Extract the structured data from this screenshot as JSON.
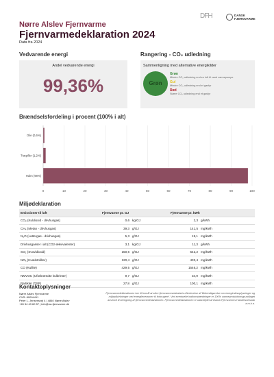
{
  "header": {
    "title": "Nørre Alslev Fjernvarme",
    "subtitle": "Fjernvarmedeklaration 2024",
    "note": "Data fra 2024",
    "logo_dfh": "DFH",
    "logo_df": "DANSK FJERNVARME"
  },
  "renewable": {
    "heading": "Vedvarende energi",
    "label": "Andel vedvarende energi",
    "value": "99,36%"
  },
  "rating": {
    "heading": "Rangering - CO₂ udledning",
    "subheading": "Sammenligning med alternative energikilder",
    "badge": "Grøn",
    "legend": [
      {
        "name": "Grøn",
        "text": "Mindre CO₂ udledning end en luft til vand varmepumpe"
      },
      {
        "name": "Gul",
        "text": "Mindre CO₂ udledning end et gasfyr"
      },
      {
        "name": "Rød",
        "text": "Større CO₂ udledning end et gasfyr"
      }
    ]
  },
  "chart_data": {
    "type": "bar",
    "orientation": "horizontal",
    "title": "Brændselsfordeling i procent (100% i alt)",
    "categories": [
      "Olie (0,6%)",
      "Træpiller (1,2%)",
      "Halm (98%)"
    ],
    "values": [
      0.6,
      1.2,
      98
    ],
    "color": "#8c4d60",
    "xlim": [
      0,
      100
    ],
    "xticks": [
      0,
      10,
      20,
      30,
      40,
      50,
      60,
      70,
      80,
      90,
      100
    ],
    "grid": true
  },
  "table": {
    "heading": "Miljødeklaration",
    "headers": [
      "Emissioner til luft",
      "Fjernvarme pr. GJ",
      "Fjernvarme pr. kWh"
    ],
    "rows": [
      [
        "CO₂ (Kuldioxid - drivhusgas)",
        "0,6",
        "kg/GJ",
        "2,3",
        "g/kWh"
      ],
      [
        "CH₄ (Metan - drivhusgas)",
        "39,3",
        "g/GJ",
        "141,5",
        "mg/kWh"
      ],
      [
        "N₂O (Lattergas - drivhusgas)",
        "5,3",
        "g/GJ",
        "19,1",
        "mg/kWh"
      ],
      [
        "Drivhusgasser i alt (CO2-ækvivalenter)",
        "3,1",
        "kg/GJ",
        "11,3",
        "g/kWh"
      ],
      [
        "SO₂ (Svovldioxid)",
        "150,6",
        "g/GJ",
        "542,2",
        "mg/kWh"
      ],
      [
        "NOₓ (Kvælstofilter)",
        "120,4",
        "g/GJ",
        "433,4",
        "mg/kWh"
      ],
      [
        "CO (Kulilte)",
        "429,5",
        "g/GJ",
        "1546,2",
        "mg/kWh"
      ],
      [
        "NMVOC (Uforbrændte kulbrinter)",
        "9,7",
        "g/GJ",
        "34,9",
        "mg/kWh"
      ],
      [
        "Partikler (TSP)",
        "27,8",
        "g/GJ",
        "100,1",
        "mg/kWh"
      ]
    ]
  },
  "contact": {
    "heading": "Kontaktoplysninger",
    "lines": [
      "Nørre Alslev Fjernvarme",
      "CVR: 80094411",
      "Peter L. Jensensvej 4 | 4840 Nørre Alslev",
      "+45 54 43 60 57 | info@na-fjernvarme.dk"
    ],
    "disclaimer": "Fjernvarmedeklarationen har til formål at sikre fjernvarmeselskabets efterlevelse af 'Bekendtgørelse om energimiksoplysninger og miljøpåvirkninger ved energileverancer til forbrugere'. Ved eventuelle indkomstændringer er 100% varmeproduktionsgrundlaget anvendt til beregning af fjernvarmedeklarationen. Fjernvarmedeklarationen er udarbejdet af Dansk Fjernvarmes Handelsselskab a.m.b.a."
  }
}
